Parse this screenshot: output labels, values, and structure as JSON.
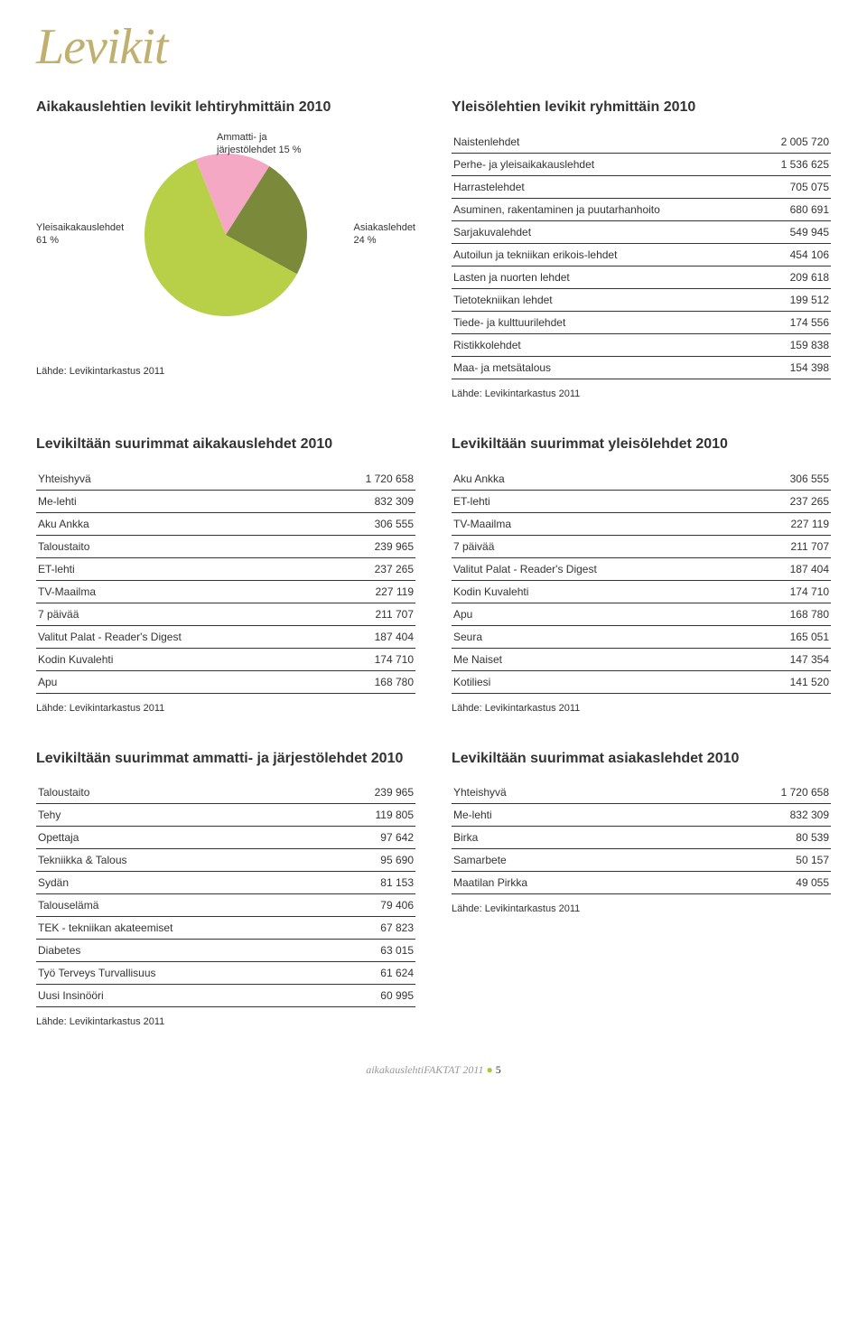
{
  "page_title": "Levikit",
  "pie_section": {
    "heading": "Aikakauslehtien levikit lehtiryhmittäin 2010",
    "slices": [
      {
        "label": "Ammatti- ja\njärjestölehdet 15 %",
        "value": 15,
        "color": "#f4a8c4"
      },
      {
        "label": "Asiakaslehdet\n24 %",
        "value": 24,
        "color": "#7a8a3a"
      },
      {
        "label": "Yleisaikakauslehdet\n61 %",
        "value": 61,
        "color": "#b8d048"
      }
    ],
    "labels": {
      "top": "Ammatti- ja\njärjestölehdet 15 %",
      "right": "Asiakaslehdet\n24 %",
      "left": "Yleisaikakauslehdet\n61 %"
    },
    "source": "Lähde: Levikintarkastus 2011"
  },
  "group_table": {
    "heading": "Yleisölehtien levikit ryhmittäin 2010",
    "rows": [
      {
        "name": "Naistenlehdet",
        "val": "2 005 720"
      },
      {
        "name": "Perhe- ja yleisaikakauslehdet",
        "val": "1 536 625"
      },
      {
        "name": "Harrastelehdet",
        "val": "705 075"
      },
      {
        "name": "Asuminen, rakentaminen ja puutarhanhoito",
        "val": "680 691"
      },
      {
        "name": "Sarjakuvalehdet",
        "val": "549 945"
      },
      {
        "name": "Autoilun ja tekniikan erikois-lehdet",
        "val": "454 106"
      },
      {
        "name": "Lasten ja nuorten lehdet",
        "val": "209 618"
      },
      {
        "name": "Tietotekniikan lehdet",
        "val": "199 512"
      },
      {
        "name": "Tiede- ja kulttuurilehdet",
        "val": "174 556"
      },
      {
        "name": "Ristikkolehdet",
        "val": "159 838"
      },
      {
        "name": "Maa- ja metsätalous",
        "val": "154 398"
      }
    ],
    "source": "Lähde: Levikintarkastus 2011"
  },
  "t1": {
    "heading": "Levikiltään suurimmat aikakauslehdet 2010",
    "rows": [
      {
        "name": "Yhteishyvä",
        "val": "1 720 658"
      },
      {
        "name": "Me-lehti",
        "val": "832 309"
      },
      {
        "name": "Aku Ankka",
        "val": "306 555"
      },
      {
        "name": "Taloustaito",
        "val": "239 965"
      },
      {
        "name": "ET-lehti",
        "val": "237 265"
      },
      {
        "name": "TV-Maailma",
        "val": "227 119"
      },
      {
        "name": "7 päivää",
        "val": "211 707"
      },
      {
        "name": "Valitut Palat - Reader's Digest",
        "val": "187 404"
      },
      {
        "name": "Kodin Kuvalehti",
        "val": "174 710"
      },
      {
        "name": "Apu",
        "val": "168 780"
      }
    ],
    "source": "Lähde: Levikintarkastus 2011"
  },
  "t2": {
    "heading": "Levikiltään suurimmat yleisölehdet 2010",
    "rows": [
      {
        "name": "Aku Ankka",
        "val": "306 555"
      },
      {
        "name": "ET-lehti",
        "val": "237 265"
      },
      {
        "name": "TV-Maailma",
        "val": "227 119"
      },
      {
        "name": "7 päivää",
        "val": "211 707"
      },
      {
        "name": "Valitut Palat - Reader's Digest",
        "val": "187 404"
      },
      {
        "name": "Kodin Kuvalehti",
        "val": "174 710"
      },
      {
        "name": "Apu",
        "val": "168 780"
      },
      {
        "name": "Seura",
        "val": "165 051"
      },
      {
        "name": "Me Naiset",
        "val": "147 354"
      },
      {
        "name": "Kotiliesi",
        "val": "141 520"
      }
    ],
    "source": "Lähde: Levikintarkastus 2011"
  },
  "t3": {
    "heading": "Levikiltään suurimmat ammatti- ja järjestölehdet 2010",
    "rows": [
      {
        "name": "Taloustaito",
        "val": "239 965"
      },
      {
        "name": "Tehy",
        "val": "119 805"
      },
      {
        "name": "Opettaja",
        "val": "97 642"
      },
      {
        "name": "Tekniikka & Talous",
        "val": "95 690"
      },
      {
        "name": "Sydän",
        "val": "81 153"
      },
      {
        "name": "Talouselämä",
        "val": "79 406"
      },
      {
        "name": "TEK - tekniikan akateemiset",
        "val": "67 823"
      },
      {
        "name": "Diabetes",
        "val": "63 015"
      },
      {
        "name": "Työ Terveys Turvallisuus",
        "val": "61 624"
      },
      {
        "name": "Uusi Insinööri",
        "val": "60 995"
      }
    ],
    "source": "Lähde: Levikintarkastus 2011"
  },
  "t4": {
    "heading": "Levikiltään suurimmat asiakaslehdet 2010",
    "rows": [
      {
        "name": "Yhteishyvä",
        "val": "1 720 658"
      },
      {
        "name": "Me-lehti",
        "val": "832 309"
      },
      {
        "name": "Birka",
        "val": "80 539"
      },
      {
        "name": "Samarbete",
        "val": "50 157"
      },
      {
        "name": "Maatilan Pirkka",
        "val": "49 055"
      }
    ],
    "source": "Lähde: Levikintarkastus 2011"
  },
  "footer": {
    "text": "aikakauslehtiFAKTAT 2011",
    "page": "5"
  }
}
